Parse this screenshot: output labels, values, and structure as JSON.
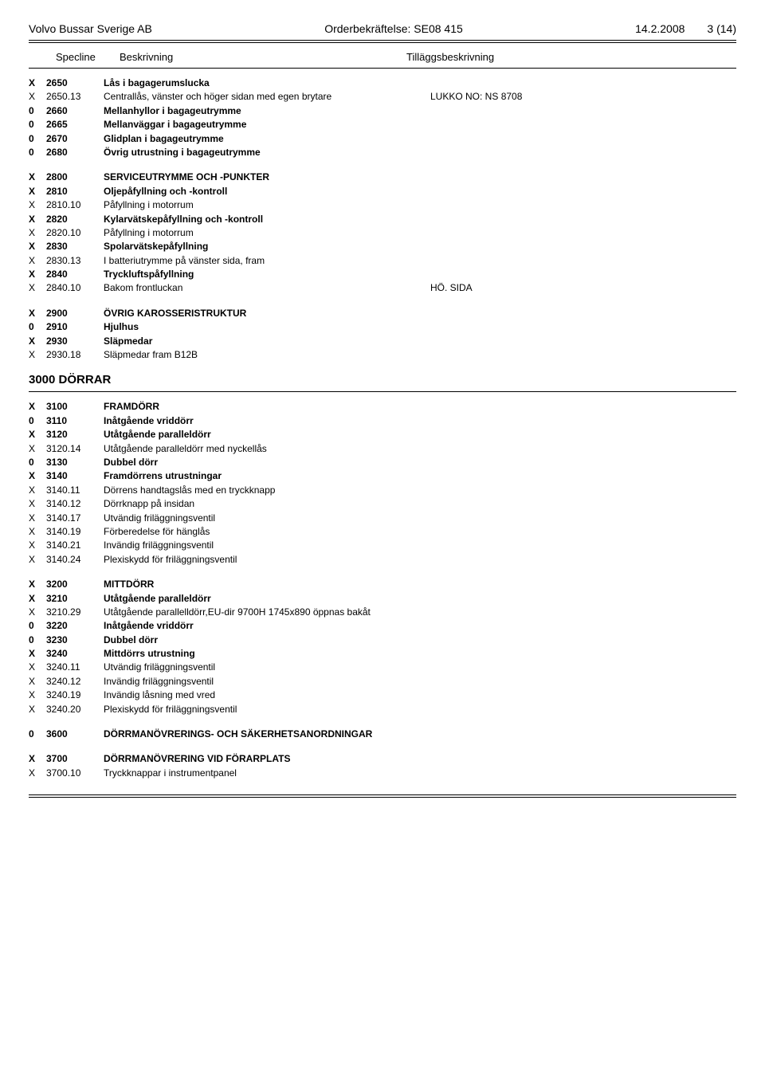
{
  "header": {
    "company": "Volvo Bussar Sverige AB",
    "order": "Orderbekräftelse: SE08 415",
    "date": "14.2.2008",
    "page": "3 (14)"
  },
  "columns": {
    "c1": "Specline",
    "c2": "Beskrivning",
    "c3": "Tilläggsbeskrivning"
  },
  "groups": [
    {
      "rows": [
        {
          "m": "X",
          "c": "2650",
          "d": "Lås i bagagerumslucka",
          "bold": true
        },
        {
          "m": "X",
          "c": "2650.13",
          "d": "Centrallås, vänster och höger sidan med egen brytare",
          "e": "LUKKO NO: NS 8708"
        },
        {
          "m": "0",
          "c": "2660",
          "d": "Mellanhyllor i bagageutrymme",
          "bold": true
        },
        {
          "m": "0",
          "c": "2665",
          "d": "Mellanväggar i bagageutrymme",
          "bold": true
        },
        {
          "m": "0",
          "c": "2670",
          "d": "Glidplan i bagageutrymme",
          "bold": true
        },
        {
          "m": "0",
          "c": "2680",
          "d": "Övrig utrustning i bagageutrymme",
          "bold": true
        }
      ]
    },
    {
      "rows": [
        {
          "m": "X",
          "c": "2800",
          "d": "SERVICEUTRYMME OCH -PUNKTER",
          "bold": true
        },
        {
          "m": "X",
          "c": "2810",
          "d": "Oljepåfyllning och -kontroll",
          "bold": true
        },
        {
          "m": "X",
          "c": "2810.10",
          "d": "Påfyllning i motorrum"
        },
        {
          "m": "X",
          "c": "2820",
          "d": "Kylarvätskepåfyllning och -kontroll",
          "bold": true
        },
        {
          "m": "X",
          "c": "2820.10",
          "d": "Påfyllning i motorrum"
        },
        {
          "m": "X",
          "c": "2830",
          "d": "Spolarvätskepåfyllning",
          "bold": true
        },
        {
          "m": "X",
          "c": "2830.13",
          "d": "I batteriutrymme på vänster sida, fram"
        },
        {
          "m": "X",
          "c": "2840",
          "d": "Tryckluftspåfyllning",
          "bold": true
        },
        {
          "m": "X",
          "c": "2840.10",
          "d": "Bakom frontluckan",
          "e": "HÖ. SIDA"
        }
      ]
    },
    {
      "rows": [
        {
          "m": "X",
          "c": "2900",
          "d": "ÖVRIG KAROSSERISTRUKTUR",
          "bold": true
        },
        {
          "m": "0",
          "c": "2910",
          "d": "Hjulhus",
          "bold": true
        },
        {
          "m": "X",
          "c": "2930",
          "d": "Släpmedar",
          "bold": true
        },
        {
          "m": "X",
          "c": "2930.18",
          "d": "Släpmedar fram B12B"
        }
      ]
    }
  ],
  "section3000": {
    "title": "3000 DÖRRAR",
    "groups": [
      {
        "rows": [
          {
            "m": "X",
            "c": "3100",
            "d": "FRAMDÖRR",
            "bold": true
          },
          {
            "m": "0",
            "c": "3110",
            "d": "Inåtgående vriddörr",
            "bold": true
          },
          {
            "m": "X",
            "c": "3120",
            "d": "Utåtgående paralleldörr",
            "bold": true
          },
          {
            "m": "X",
            "c": "3120.14",
            "d": "Utåtgående paralleldörr med nyckellås"
          },
          {
            "m": "0",
            "c": "3130",
            "d": "Dubbel dörr",
            "bold": true
          },
          {
            "m": "X",
            "c": "3140",
            "d": "Framdörrens utrustningar",
            "bold": true
          },
          {
            "m": "X",
            "c": "3140.11",
            "d": "Dörrens handtagslås med en tryckknapp"
          },
          {
            "m": "X",
            "c": "3140.12",
            "d": "Dörrknapp på insidan"
          },
          {
            "m": "X",
            "c": "3140.17",
            "d": "Utvändig friläggningsventil"
          },
          {
            "m": "X",
            "c": "3140.19",
            "d": "Förberedelse för hänglås"
          },
          {
            "m": "X",
            "c": "3140.21",
            "d": "Invändig friläggningsventil"
          },
          {
            "m": "X",
            "c": "3140.24",
            "d": "Plexiskydd för friläggningsventil"
          }
        ]
      },
      {
        "rows": [
          {
            "m": "X",
            "c": "3200",
            "d": "MITTDÖRR",
            "bold": true
          },
          {
            "m": "X",
            "c": "3210",
            "d": "Utåtgående paralleldörr",
            "bold": true
          },
          {
            "m": "X",
            "c": "3210.29",
            "d": "Utåtgående parallelldörr,EU-dir 9700H 1745x890 öppnas bakåt"
          },
          {
            "m": "0",
            "c": "3220",
            "d": "Inåtgående vriddörr",
            "bold": true
          },
          {
            "m": "0",
            "c": "3230",
            "d": "Dubbel dörr",
            "bold": true
          },
          {
            "m": "X",
            "c": "3240",
            "d": "Mittdörrs utrustning",
            "bold": true
          },
          {
            "m": "X",
            "c": "3240.11",
            "d": "Utvändig friläggningsventil"
          },
          {
            "m": "X",
            "c": "3240.12",
            "d": "Invändig friläggningsventil"
          },
          {
            "m": "X",
            "c": "3240.19",
            "d": "Invändig låsning med vred"
          },
          {
            "m": "X",
            "c": "3240.20",
            "d": "Plexiskydd för friläggningsventil"
          }
        ]
      },
      {
        "rows": [
          {
            "m": "0",
            "c": "3600",
            "d": "DÖRRMANÖVRERINGS- OCH SÄKERHETSANORDNINGAR",
            "bold": true
          }
        ]
      },
      {
        "rows": [
          {
            "m": "X",
            "c": "3700",
            "d": "DÖRRMANÖVRERING VID FÖRARPLATS",
            "bold": true
          },
          {
            "m": "X",
            "c": "3700.10",
            "d": "Tryckknappar i instrumentpanel"
          }
        ]
      }
    ]
  }
}
